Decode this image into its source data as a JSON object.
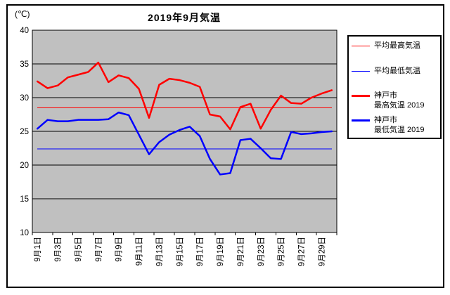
{
  "title": "2019年9月気温",
  "y_unit_label": "(℃)",
  "colors": {
    "max_series": "#FF0000",
    "min_series": "#0000FF",
    "plot_background": "#C0C0C0",
    "gridline": "#000000",
    "border": "#000000"
  },
  "legend": {
    "items": [
      {
        "label": "平均最高気温",
        "color": "#FF0000",
        "thick": false
      },
      {
        "label": "平均最低気温",
        "color": "#0000FF",
        "thick": false
      },
      {
        "label": "神戸市\n最高気温 2019",
        "color": "#FF0000",
        "thick": true
      },
      {
        "label": "神戸市\n最低気温 2019",
        "color": "#0000FF",
        "thick": true
      }
    ]
  },
  "chart_data": {
    "type": "line",
    "title": "2019年9月気温",
    "xlabel": "",
    "ylabel": "(℃)",
    "ylim": [
      10,
      40
    ],
    "y_ticks": [
      10,
      15,
      20,
      25,
      30,
      35,
      40
    ],
    "grid": "horizontal",
    "legend_position": "right",
    "days": [
      1,
      2,
      3,
      4,
      5,
      6,
      7,
      8,
      9,
      10,
      11,
      12,
      13,
      14,
      15,
      16,
      17,
      18,
      19,
      20,
      21,
      22,
      23,
      24,
      25,
      26,
      27,
      28,
      29,
      30
    ],
    "x_tick_labels": [
      "9月1日",
      "9月3日",
      "9月5日",
      "9月7日",
      "9月9日",
      "9月11日",
      "9月13日",
      "9月15日",
      "9月17日",
      "9月19日",
      "9月21日",
      "9月23日",
      "9月25日",
      "9月27日",
      "9月29日"
    ],
    "series": [
      {
        "name": "平均最高気温",
        "type": "constant",
        "value": 28.5,
        "color": "#FF0000",
        "width": 1
      },
      {
        "name": "平均最低気温",
        "type": "constant",
        "value": 22.4,
        "color": "#0000FF",
        "width": 1
      },
      {
        "name": "神戸市 最高気温 2019",
        "type": "line",
        "color": "#FF0000",
        "width": 2.5,
        "values": [
          32.4,
          31.4,
          31.8,
          33.0,
          33.4,
          33.8,
          35.2,
          32.3,
          33.3,
          32.9,
          31.3,
          27.0,
          31.9,
          32.8,
          32.6,
          32.2,
          31.6,
          27.5,
          27.2,
          25.3,
          28.6,
          29.1,
          25.4,
          28.2,
          30.3,
          29.2,
          29.1,
          30.0,
          30.6,
          31.1
        ]
      },
      {
        "name": "神戸市 最低気温 2019",
        "type": "line",
        "color": "#0000FF",
        "width": 2.5,
        "values": [
          25.4,
          26.7,
          26.5,
          26.5,
          26.7,
          26.7,
          26.7,
          26.8,
          27.8,
          27.4,
          24.5,
          21.6,
          23.4,
          24.5,
          25.2,
          25.7,
          24.3,
          20.9,
          18.6,
          18.8,
          23.7,
          23.9,
          22.5,
          21.0,
          20.9,
          24.9,
          24.6,
          24.7,
          24.9,
          25.0
        ]
      }
    ]
  }
}
